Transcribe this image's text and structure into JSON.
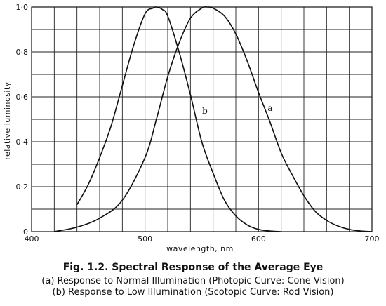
{
  "chart_data": {
    "type": "line",
    "xlabel": "wavelength, nm",
    "ylabel": "relative luminosity",
    "xlim": [
      400,
      700
    ],
    "ylim": [
      0,
      1.0
    ],
    "x_ticks": [
      400,
      500,
      600,
      700
    ],
    "x_tick_labels": [
      "400",
      "500",
      "600",
      "700"
    ],
    "y_ticks": [
      0,
      0.2,
      0.4,
      0.6,
      0.8,
      1.0
    ],
    "y_tick_labels": [
      "0",
      "0·2",
      "0·4",
      "0·6",
      "0·8",
      "1·0"
    ],
    "grid": true,
    "series": [
      {
        "name": "a",
        "x": [
          420,
          440,
          460,
          480,
          500,
          510,
          520,
          530,
          540,
          550,
          555,
          560,
          570,
          580,
          590,
          600,
          610,
          620,
          630,
          640,
          650,
          660,
          670,
          680,
          690,
          700
        ],
        "y": [
          0.0,
          0.02,
          0.06,
          0.14,
          0.33,
          0.5,
          0.69,
          0.84,
          0.95,
          0.995,
          1.0,
          0.995,
          0.96,
          0.88,
          0.76,
          0.62,
          0.49,
          0.35,
          0.25,
          0.16,
          0.09,
          0.05,
          0.025,
          0.01,
          0.003,
          0.0
        ]
      },
      {
        "name": "b",
        "x": [
          440,
          450,
          460,
          470,
          480,
          490,
          500,
          507,
          510,
          515,
          520,
          530,
          540,
          550,
          560,
          570,
          580,
          590,
          600,
          610,
          620
        ],
        "y": [
          0.12,
          0.21,
          0.33,
          0.47,
          0.65,
          0.83,
          0.97,
          0.995,
          1.0,
          0.99,
          0.96,
          0.8,
          0.61,
          0.4,
          0.26,
          0.14,
          0.07,
          0.03,
          0.01,
          0.003,
          0.0
        ]
      }
    ]
  },
  "caption": {
    "title": "Fig. 1.2.  Spectral Response of the Average Eye",
    "line_a": "(a) Response to Normal Illumination (Photopic Curve:  Cone Vision)",
    "line_b": "(b) Response to Low Illumination (Scotopic Curve:  Rod Vision)"
  }
}
